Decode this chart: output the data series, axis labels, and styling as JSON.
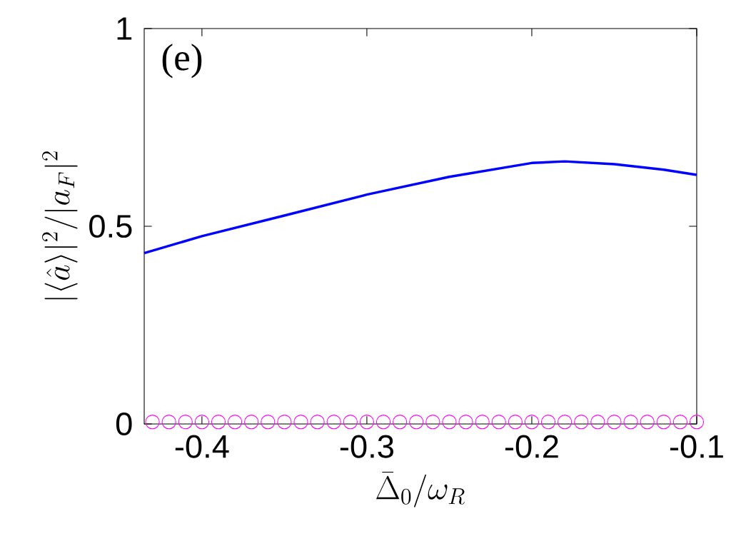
{
  "chart_data": {
    "type": "line",
    "xlabel": "\\bar{\\Delta}_0/\\omega_R",
    "ylabel": "|\\langle\\hat{a}\\rangle|^2/|a_F|^2",
    "annotations": [
      "(e)"
    ],
    "xlim": [
      -0.435,
      -0.1
    ],
    "ylim": [
      0,
      1
    ],
    "xticks": [
      -0.4,
      -0.3,
      -0.2,
      -0.1
    ],
    "yticks": [
      0,
      0.5,
      1
    ],
    "series": [
      {
        "color": "#0000ff",
        "marker": "none",
        "line_style": "solid",
        "x": [
          -0.435,
          -0.4,
          -0.35,
          -0.3,
          -0.25,
          -0.2,
          -0.18,
          -0.15,
          -0.12,
          -0.1
        ],
        "values": [
          0.432,
          0.475,
          0.527,
          0.58,
          0.625,
          0.66,
          0.664,
          0.657,
          0.643,
          0.63
        ]
      },
      {
        "type": "scatter",
        "color": "#ff00ff",
        "marker": "circle",
        "x": [
          -0.43,
          -0.42,
          -0.41,
          -0.4,
          -0.39,
          -0.38,
          -0.37,
          -0.36,
          -0.35,
          -0.34,
          -0.33,
          -0.32,
          -0.31,
          -0.3,
          -0.29,
          -0.28,
          -0.27,
          -0.26,
          -0.25,
          -0.24,
          -0.23,
          -0.22,
          -0.21,
          -0.2,
          -0.19,
          -0.18,
          -0.17,
          -0.16,
          -0.15,
          -0.14,
          -0.13,
          -0.12,
          -0.11,
          -0.1
        ],
        "values": [
          0.005,
          0.005,
          0.005,
          0.005,
          0.005,
          0.005,
          0.005,
          0.005,
          0.005,
          0.005,
          0.005,
          0.005,
          0.005,
          0.005,
          0.005,
          0.005,
          0.005,
          0.005,
          0.005,
          0.005,
          0.005,
          0.005,
          0.005,
          0.005,
          0.005,
          0.005,
          0.005,
          0.005,
          0.005,
          0.005,
          0.005,
          0.005,
          0.005,
          0.005
        ]
      }
    ]
  }
}
